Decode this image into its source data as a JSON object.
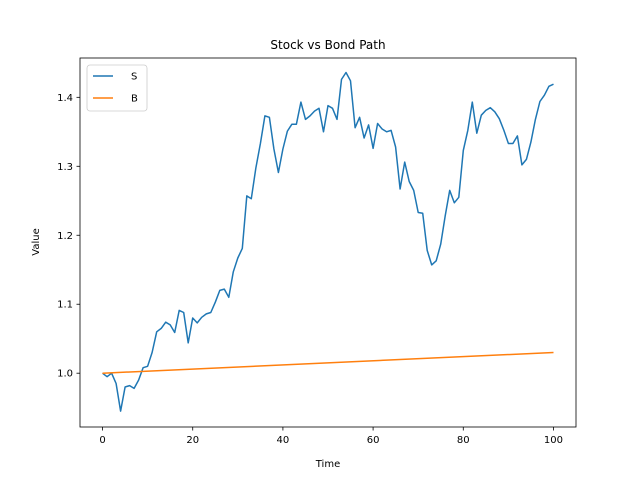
{
  "chart_data": {
    "type": "line",
    "title": "Stock vs Bond Path",
    "xlabel": "Time",
    "ylabel": "Value",
    "xlim": [
      -5,
      105
    ],
    "ylim": [
      0.922,
      1.457
    ],
    "xticks": [
      0,
      20,
      40,
      60,
      80,
      100
    ],
    "yticks": [
      1.0,
      1.1,
      1.2,
      1.3,
      1.4
    ],
    "grid": false,
    "legend": "top-left",
    "series": [
      {
        "name": "S",
        "color": "#1f77b4",
        "x": [
          0,
          1,
          2,
          3,
          4,
          5,
          6,
          7,
          8,
          9,
          10,
          11,
          12,
          13,
          14,
          15,
          16,
          17,
          18,
          19,
          20,
          21,
          22,
          23,
          24,
          25,
          26,
          27,
          28,
          29,
          30,
          31,
          32,
          33,
          34,
          35,
          36,
          37,
          38,
          39,
          40,
          41,
          42,
          43,
          44,
          45,
          46,
          47,
          48,
          49,
          50,
          51,
          52,
          53,
          54,
          55,
          56,
          57,
          58,
          59,
          60,
          61,
          62,
          63,
          64,
          65,
          66,
          67,
          68,
          69,
          70,
          71,
          72,
          73,
          74,
          75,
          76,
          77,
          78,
          79,
          80,
          81,
          82,
          83,
          84,
          85,
          86,
          87,
          88,
          89,
          90,
          91,
          92,
          93,
          94,
          95,
          96,
          97,
          98,
          99,
          100
        ],
        "values": [
          1.0,
          0.995,
          1.0,
          0.985,
          0.945,
          0.98,
          0.982,
          0.978,
          0.99,
          1.008,
          1.01,
          1.03,
          1.06,
          1.065,
          1.074,
          1.07,
          1.059,
          1.091,
          1.088,
          1.044,
          1.08,
          1.073,
          1.081,
          1.086,
          1.088,
          1.103,
          1.12,
          1.122,
          1.11,
          1.147,
          1.167,
          1.181,
          1.257,
          1.253,
          1.298,
          1.333,
          1.373,
          1.371,
          1.325,
          1.291,
          1.325,
          1.351,
          1.361,
          1.361,
          1.393,
          1.368,
          1.373,
          1.38,
          1.384,
          1.35,
          1.388,
          1.384,
          1.368,
          1.426,
          1.436,
          1.424,
          1.356,
          1.371,
          1.341,
          1.36,
          1.326,
          1.362,
          1.354,
          1.35,
          1.352,
          1.328,
          1.267,
          1.306,
          1.278,
          1.265,
          1.233,
          1.232,
          1.178,
          1.157,
          1.163,
          1.187,
          1.228,
          1.265,
          1.247,
          1.255,
          1.323,
          1.352,
          1.393,
          1.348,
          1.374,
          1.381,
          1.385,
          1.379,
          1.369,
          1.352,
          1.333,
          1.333,
          1.344,
          1.302,
          1.31,
          1.335,
          1.368,
          1.394,
          1.403,
          1.416,
          1.419
        ]
      },
      {
        "name": "B",
        "color": "#ff7f0e",
        "x": [
          0,
          100
        ],
        "values": [
          1.0,
          1.03
        ]
      }
    ]
  }
}
